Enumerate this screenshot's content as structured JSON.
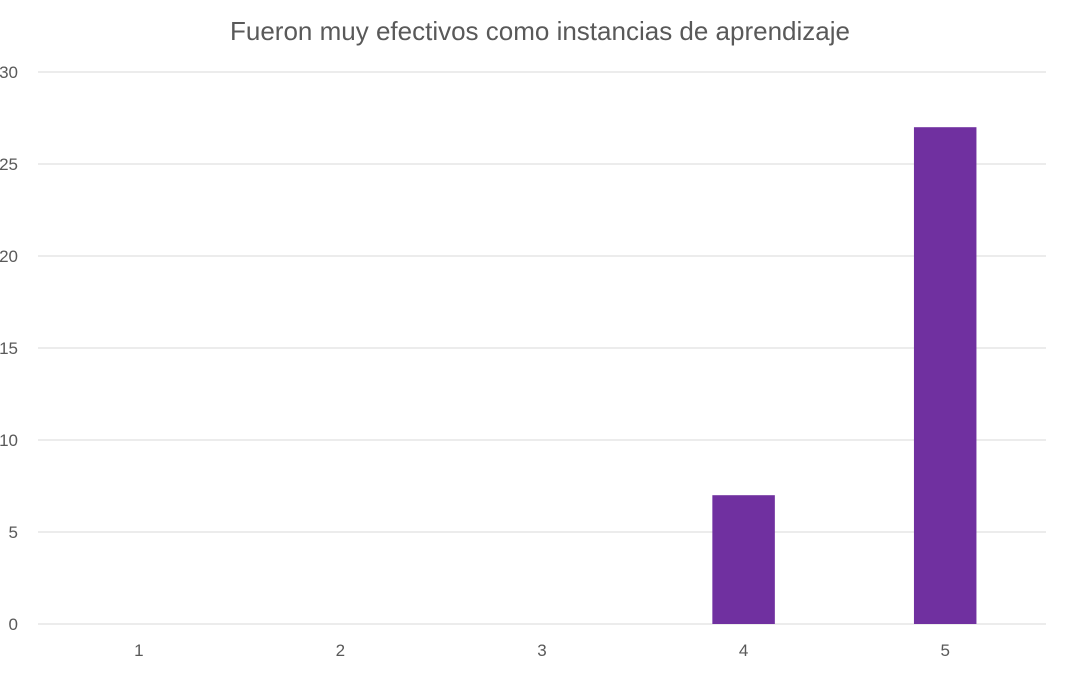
{
  "chart_data": {
    "type": "bar",
    "title": "Fueron muy efectivos como instancias de aprendizaje",
    "categories": [
      "1",
      "2",
      "3",
      "4",
      "5"
    ],
    "series": [
      {
        "values": [
          0,
          0,
          0,
          7,
          27
        ]
      }
    ],
    "ylim": [
      0,
      30
    ],
    "yticks": [
      "0",
      "5",
      "10",
      "15",
      "20",
      "25",
      "30"
    ],
    "xlabel": "",
    "ylabel": "",
    "grid": true,
    "legend": "none",
    "colors": {
      "bar": "#7030A0",
      "grid": "#D9D9D9",
      "text": "#595959"
    }
  }
}
